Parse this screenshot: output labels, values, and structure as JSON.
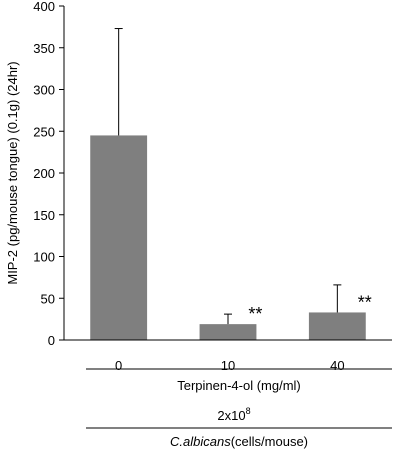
{
  "chart_data": {
    "type": "bar",
    "categories": [
      "0",
      "10",
      "40"
    ],
    "values": [
      245,
      19,
      33
    ],
    "error_upper": [
      373,
      31,
      66
    ],
    "significance": [
      "",
      "**",
      "**"
    ],
    "ylabel": "MIP-2 (pg/mouse tongue) (0.1g) (24hr)",
    "ylim": [
      0,
      400
    ],
    "yticks": [
      0,
      50,
      100,
      150,
      200,
      250,
      300,
      350,
      400
    ],
    "xlabel": "Terpinen-4-ol (mg/ml)",
    "dose_value": "2x10",
    "dose_exponent": "8",
    "organism": "C.albicans",
    "organism_unit": "(cells/mouse)",
    "bar_color": "#7f7f7f",
    "grid": false
  }
}
